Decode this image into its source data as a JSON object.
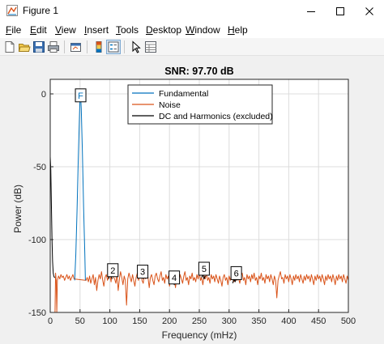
{
  "window": {
    "title": "Figure 1",
    "minimize_label": "minimize",
    "maximize_label": "maximize",
    "close_label": "close"
  },
  "menu": {
    "items": [
      {
        "first": "F",
        "rest": "ile"
      },
      {
        "first": "E",
        "rest": "dit"
      },
      {
        "first": "V",
        "rest": "iew"
      },
      {
        "first": "I",
        "rest": "nsert"
      },
      {
        "first": "T",
        "rest": "ools"
      },
      {
        "first": "D",
        "rest": "esktop"
      },
      {
        "first": "W",
        "rest": "indow"
      },
      {
        "first": "H",
        "rest": "elp"
      }
    ]
  },
  "toolbar": {
    "icons": [
      "new-figure-icon",
      "open-file-icon",
      "save-icon",
      "print-icon",
      "link-plot-icon",
      "insert-colorbar-icon",
      "insert-legend-icon",
      "edit-plot-icon",
      "property-inspector-icon"
    ]
  },
  "chart_data": {
    "type": "line",
    "title": "SNR:  97.70 dB",
    "xlabel": "Frequency (mHz)",
    "ylabel": "Power (dB)",
    "xlim": [
      0,
      500
    ],
    "ylim": [
      -150,
      10
    ],
    "xticks": [
      0,
      50,
      100,
      150,
      200,
      250,
      300,
      350,
      400,
      450,
      500
    ],
    "yticks": [
      0,
      -50,
      -100,
      -150
    ],
    "xtick_labels": [
      "0",
      "50",
      "100",
      "150",
      "200",
      "250",
      "300",
      "350",
      "400",
      "450",
      "500"
    ],
    "ytick_labels": [
      "0",
      "-50",
      "-100",
      "-150"
    ],
    "grid": true,
    "legend_position": "top-right",
    "series": [
      {
        "name": "Fundamental",
        "color": "#0072bd",
        "points": [
          [
            41,
            -128
          ],
          [
            43,
            -110
          ],
          [
            45,
            -80
          ],
          [
            47,
            -45
          ],
          [
            49,
            -15
          ],
          [
            50,
            -2
          ],
          [
            51,
            -1
          ],
          [
            52,
            -10
          ],
          [
            54,
            -40
          ],
          [
            56,
            -78
          ],
          [
            58,
            -110
          ],
          [
            59,
            -128
          ]
        ]
      },
      {
        "name": "Noise",
        "color": "#d95319",
        "points": [
          [
            8,
            -150
          ],
          [
            9,
            -123
          ],
          [
            10,
            -128
          ],
          [
            11,
            -150
          ],
          [
            12,
            -128
          ],
          [
            14,
            -125
          ],
          [
            16,
            -127
          ],
          [
            18,
            -124
          ],
          [
            20,
            -126
          ],
          [
            22,
            -125
          ],
          [
            24,
            -128
          ],
          [
            26,
            -126
          ],
          [
            28,
            -124
          ],
          [
            30,
            -127
          ],
          [
            32,
            -125
          ],
          [
            34,
            -128
          ],
          [
            36,
            -126
          ],
          [
            38,
            -124
          ],
          [
            40,
            -127
          ],
          [
            60,
            -128
          ],
          [
            62,
            -126
          ],
          [
            64,
            -129
          ],
          [
            66,
            -125
          ],
          [
            68,
            -130
          ],
          [
            70,
            -127
          ],
          [
            72,
            -124
          ],
          [
            74,
            -131
          ],
          [
            76,
            -126
          ],
          [
            78,
            -135
          ],
          [
            80,
            -128
          ],
          [
            82,
            -124
          ],
          [
            84,
            -127
          ],
          [
            86,
            -122
          ],
          [
            88,
            -128
          ],
          [
            90,
            -132
          ],
          [
            92,
            -126
          ],
          [
            94,
            -124
          ],
          [
            96,
            -128
          ],
          [
            98,
            -125
          ],
          [
            100,
            -123
          ],
          [
            102,
            -129
          ],
          [
            104,
            -121
          ],
          [
            106,
            -126
          ],
          [
            108,
            -127
          ],
          [
            110,
            -130
          ],
          [
            112,
            -124
          ],
          [
            114,
            -135
          ],
          [
            116,
            -127
          ],
          [
            118,
            -122
          ],
          [
            120,
            -126
          ],
          [
            122,
            -131
          ],
          [
            124,
            -125
          ],
          [
            126,
            -128
          ],
          [
            128,
            -145
          ],
          [
            130,
            -127
          ],
          [
            132,
            -123
          ],
          [
            134,
            -126
          ],
          [
            136,
            -129
          ],
          [
            138,
            -124
          ],
          [
            140,
            -128
          ],
          [
            142,
            -132
          ],
          [
            144,
            -126
          ],
          [
            146,
            -123
          ],
          [
            148,
            -128
          ],
          [
            150,
            -125
          ],
          [
            152,
            -122
          ],
          [
            154,
            -128
          ],
          [
            156,
            -130
          ],
          [
            158,
            -124
          ],
          [
            160,
            -127
          ],
          [
            162,
            -121
          ],
          [
            164,
            -126
          ],
          [
            166,
            -133
          ],
          [
            168,
            -126
          ],
          [
            170,
            -124
          ],
          [
            172,
            -128
          ],
          [
            174,
            -131
          ],
          [
            176,
            -125
          ],
          [
            178,
            -123
          ],
          [
            180,
            -127
          ],
          [
            182,
            -129
          ],
          [
            184,
            -125
          ],
          [
            186,
            -122
          ],
          [
            188,
            -128
          ],
          [
            190,
            -126
          ],
          [
            192,
            -130
          ],
          [
            194,
            -124
          ],
          [
            196,
            -127
          ],
          [
            198,
            -125
          ],
          [
            200,
            -132
          ],
          [
            202,
            -127
          ],
          [
            204,
            -124
          ],
          [
            206,
            -128
          ],
          [
            208,
            -126
          ],
          [
            210,
            -133
          ],
          [
            212,
            -127
          ],
          [
            214,
            -125
          ],
          [
            216,
            -129
          ],
          [
            218,
            -124
          ],
          [
            220,
            -127
          ],
          [
            222,
            -130
          ],
          [
            224,
            -125
          ],
          [
            226,
            -122
          ],
          [
            228,
            -128
          ],
          [
            230,
            -126
          ],
          [
            232,
            -131
          ],
          [
            234,
            -125
          ],
          [
            236,
            -127
          ],
          [
            238,
            -123
          ],
          [
            240,
            -128
          ],
          [
            242,
            -126
          ],
          [
            244,
            -129
          ],
          [
            246,
            -124
          ],
          [
            248,
            -127
          ],
          [
            250,
            -122
          ],
          [
            252,
            -128
          ],
          [
            254,
            -126
          ],
          [
            256,
            -131
          ],
          [
            258,
            -125
          ],
          [
            260,
            -127
          ],
          [
            262,
            -123
          ],
          [
            264,
            -128
          ],
          [
            266,
            -126
          ],
          [
            268,
            -130
          ],
          [
            270,
            -124
          ],
          [
            272,
            -127
          ],
          [
            274,
            -125
          ],
          [
            276,
            -129
          ],
          [
            278,
            -124
          ],
          [
            280,
            -127
          ],
          [
            282,
            -130
          ],
          [
            284,
            -125
          ],
          [
            286,
            -128
          ],
          [
            288,
            -132
          ],
          [
            290,
            -126
          ],
          [
            292,
            -124
          ],
          [
            294,
            -128
          ],
          [
            296,
            -126
          ],
          [
            298,
            -131
          ],
          [
            300,
            -125
          ],
          [
            302,
            -128
          ],
          [
            304,
            -124
          ],
          [
            306,
            -127
          ],
          [
            308,
            -129
          ],
          [
            310,
            -125
          ],
          [
            312,
            -128
          ],
          [
            314,
            -122
          ],
          [
            316,
            -127
          ],
          [
            318,
            -130
          ],
          [
            320,
            -125
          ],
          [
            322,
            -123
          ],
          [
            324,
            -128
          ],
          [
            326,
            -126
          ],
          [
            328,
            -131
          ],
          [
            330,
            -124
          ],
          [
            332,
            -127
          ],
          [
            334,
            -125
          ],
          [
            336,
            -129
          ],
          [
            338,
            -124
          ],
          [
            340,
            -127
          ],
          [
            342,
            -123
          ],
          [
            344,
            -128
          ],
          [
            346,
            -126
          ],
          [
            348,
            -131
          ],
          [
            350,
            -125
          ],
          [
            352,
            -127
          ],
          [
            354,
            -123
          ],
          [
            356,
            -128
          ],
          [
            358,
            -126
          ],
          [
            360,
            -130
          ],
          [
            362,
            -124
          ],
          [
            364,
            -127
          ],
          [
            366,
            -125
          ],
          [
            368,
            -129
          ],
          [
            370,
            -124
          ],
          [
            372,
            -127
          ],
          [
            374,
            -131
          ],
          [
            376,
            -125
          ],
          [
            378,
            -128
          ],
          [
            380,
            -140
          ],
          [
            382,
            -128
          ],
          [
            384,
            -125
          ],
          [
            386,
            -122
          ],
          [
            388,
            -127
          ],
          [
            390,
            -126
          ],
          [
            392,
            -130
          ],
          [
            394,
            -124
          ],
          [
            396,
            -127
          ],
          [
            398,
            -125
          ],
          [
            400,
            -129
          ],
          [
            402,
            -124
          ],
          [
            404,
            -127
          ],
          [
            406,
            -131
          ],
          [
            408,
            -125
          ],
          [
            410,
            -128
          ],
          [
            412,
            -124
          ],
          [
            414,
            -127
          ],
          [
            416,
            -125
          ],
          [
            418,
            -129
          ],
          [
            420,
            -124
          ],
          [
            422,
            -127
          ],
          [
            424,
            -130
          ],
          [
            426,
            -125
          ],
          [
            428,
            -128
          ],
          [
            430,
            -124
          ],
          [
            432,
            -127
          ],
          [
            434,
            -125
          ],
          [
            436,
            -129
          ],
          [
            438,
            -124
          ],
          [
            440,
            -127
          ],
          [
            442,
            -131
          ],
          [
            444,
            -125
          ],
          [
            446,
            -128
          ],
          [
            448,
            -124
          ],
          [
            450,
            -127
          ],
          [
            452,
            -125
          ],
          [
            454,
            -129
          ],
          [
            456,
            -124
          ],
          [
            458,
            -127
          ],
          [
            460,
            -131
          ],
          [
            462,
            -125
          ],
          [
            464,
            -128
          ],
          [
            466,
            -124
          ],
          [
            468,
            -127
          ],
          [
            470,
            -125
          ],
          [
            472,
            -129
          ],
          [
            474,
            -124
          ],
          [
            476,
            -127
          ],
          [
            478,
            -131
          ],
          [
            480,
            -125
          ],
          [
            482,
            -128
          ],
          [
            484,
            -124
          ],
          [
            486,
            -127
          ],
          [
            488,
            -125
          ],
          [
            490,
            -129
          ],
          [
            492,
            -124
          ],
          [
            494,
            -127
          ],
          [
            496,
            -130
          ],
          [
            498,
            -125
          ],
          [
            500,
            -128
          ]
        ]
      },
      {
        "name": "DC and Harmonics (excluded)",
        "color": "#000000",
        "segments": [
          [
            [
              0,
              -43
            ],
            [
              1,
              -52
            ],
            [
              2,
              -78
            ],
            [
              3,
              -100
            ],
            [
              4,
              -115
            ],
            [
              5,
              -123
            ],
            [
              6,
              -125
            ],
            [
              7,
              -126
            ],
            [
              8,
              -126
            ]
          ],
          [
            [
              98,
              -127
            ],
            [
              100,
              -123
            ],
            [
              102,
              -125
            ],
            [
              104,
              -127
            ]
          ],
          [
            [
              148,
              -126
            ],
            [
              150,
              -124
            ],
            [
              152,
              -122
            ],
            [
              154,
              -125
            ],
            [
              156,
              -127
            ]
          ],
          [
            [
              206,
              -128
            ],
            [
              208,
              -131
            ],
            [
              210,
              -126
            ],
            [
              212,
              -129
            ]
          ],
          [
            [
              254,
              -126
            ],
            [
              256,
              -124
            ],
            [
              258,
              -127
            ],
            [
              260,
              -125
            ]
          ],
          [
            [
              306,
              -130
            ],
            [
              308,
              -127
            ],
            [
              310,
              -129
            ],
            [
              312,
              -126
            ],
            [
              314,
              -128
            ]
          ]
        ]
      }
    ],
    "annotations": [
      {
        "label": "F",
        "x": 51,
        "y": -1
      },
      {
        "label": "2",
        "x": 105,
        "y": -121
      },
      {
        "label": "3",
        "x": 155,
        "y": -122
      },
      {
        "label": "4",
        "x": 208,
        "y": -126
      },
      {
        "label": "5",
        "x": 258,
        "y": -120
      },
      {
        "label": "6",
        "x": 312,
        "y": -123
      }
    ]
  }
}
